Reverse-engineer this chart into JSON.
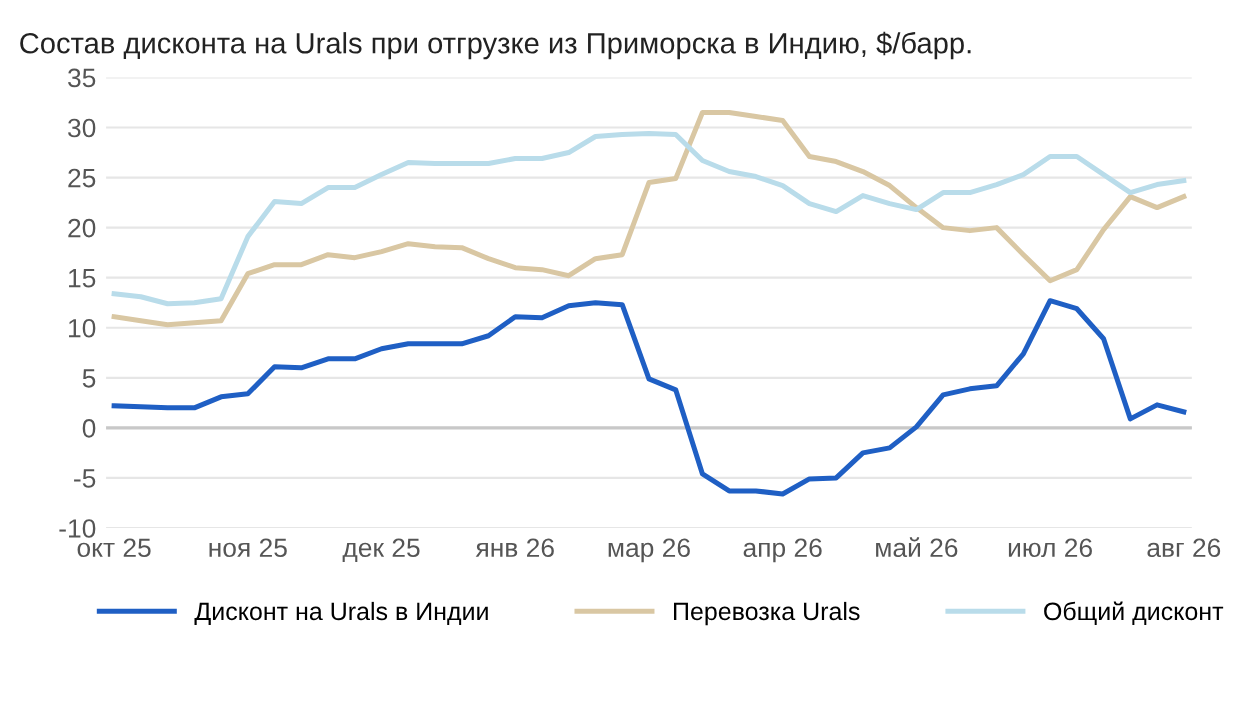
{
  "chart_data": {
    "type": "line",
    "title": "Состав дисконта на Urals при отгрузке из Приморска в Индию, $/барр.",
    "categories": [
      "окт 25",
      null,
      null,
      null,
      null,
      "ноя 25",
      null,
      null,
      null,
      null,
      "дек 25",
      null,
      null,
      null,
      null,
      "янв 26",
      null,
      null,
      null,
      null,
      "мар 26",
      null,
      null,
      null,
      null,
      "апр 26",
      null,
      null,
      null,
      null,
      "май 26",
      null,
      null,
      null,
      null,
      "июл 26",
      null,
      null,
      null,
      null,
      "авг 26"
    ],
    "series": [
      {
        "name": "Дисконт на Urals в Индии",
        "color": "#1f5fc4",
        "values": [
          2.2,
          2.1,
          2.0,
          2.0,
          3.1,
          3.4,
          6.1,
          6.0,
          6.9,
          6.9,
          7.9,
          8.4,
          8.4,
          8.4,
          9.2,
          11.1,
          11.0,
          12.2,
          12.5,
          12.3,
          4.9,
          3.8,
          -4.6,
          -6.3,
          -6.3,
          -6.6,
          -5.1,
          -5.0,
          -2.5,
          -2.0,
          0.1,
          3.3,
          3.9,
          4.2,
          7.4,
          12.7,
          11.9,
          8.9,
          0.9,
          2.3,
          1.6
        ]
      },
      {
        "name": "Перевозка Urals",
        "color": "#d9c7a3",
        "values": [
          11.1,
          10.7,
          10.3,
          10.5,
          10.7,
          15.4,
          16.3,
          16.3,
          17.3,
          17.0,
          17.6,
          18.4,
          18.1,
          18.0,
          16.9,
          16.0,
          15.8,
          15.2,
          16.9,
          17.3,
          24.5,
          24.9,
          31.5,
          31.5,
          31.1,
          30.7,
          27.1,
          26.6,
          25.6,
          24.2,
          22.0,
          20.0,
          19.7,
          20.0,
          17.3,
          14.7,
          15.8,
          19.8,
          23.1,
          22.0,
          23.1
        ]
      },
      {
        "name": "Общий дисконт",
        "color": "#b9dcea",
        "values": [
          13.4,
          13.1,
          12.4,
          12.5,
          12.9,
          19.1,
          22.6,
          22.4,
          24.0,
          24.0,
          25.3,
          26.5,
          26.4,
          26.4,
          26.4,
          26.9,
          26.9,
          27.5,
          29.1,
          29.3,
          29.4,
          29.3,
          26.7,
          25.6,
          25.1,
          24.2,
          22.4,
          21.6,
          23.2,
          22.4,
          21.8,
          23.5,
          23.5,
          24.3,
          25.3,
          27.1,
          27.1,
          25.3,
          23.5,
          24.3,
          24.7
        ]
      }
    ],
    "ylim": [
      -10,
      35
    ],
    "yticks": [
      -10,
      -5,
      0,
      5,
      10,
      15,
      20,
      25,
      30,
      35
    ],
    "grid": "y",
    "legend": "bottom",
    "marker": "none",
    "line_style": "solid",
    "ref_lines": [
      {
        "axis": "y",
        "value": 0,
        "color": "#c8c8c8"
      }
    ]
  }
}
